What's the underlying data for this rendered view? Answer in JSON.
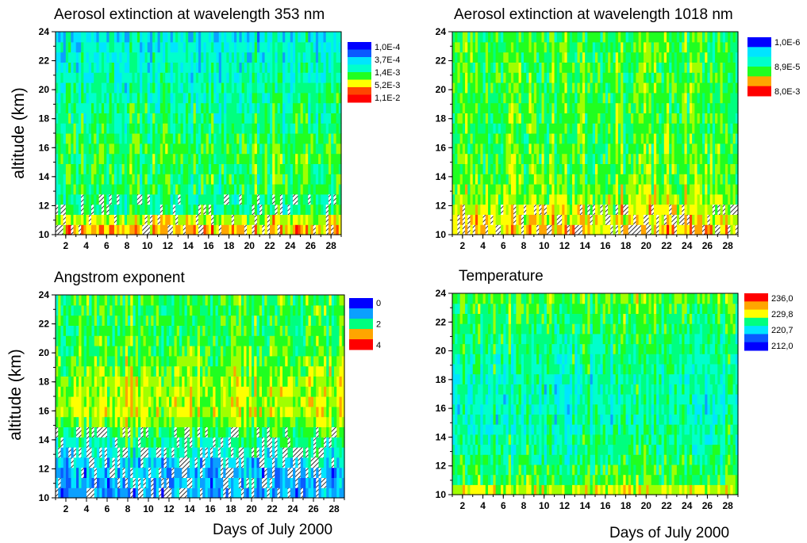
{
  "palette": [
    "#0000ff",
    "#0a5aff",
    "#0aa0ff",
    "#00e5ff",
    "#00ffcc",
    "#00ff7f",
    "#20ff20",
    "#a0ff00",
    "#ffff00",
    "#ffa500",
    "#ff4500",
    "#ff0000"
  ],
  "hatch_color": "#000000",
  "chart_data": [
    {
      "type": "heatmap",
      "title": "Aerosol extinction at wavelength 353 nm",
      "ylabel": "altitude (km)",
      "xlabel": "",
      "x_range": [
        1,
        29
      ],
      "ylim": [
        10,
        24
      ],
      "x_ticks": [
        "2",
        "4",
        "6",
        "8",
        "10",
        "12",
        "14",
        "16",
        "18",
        "20",
        "22",
        "24",
        "26",
        "28"
      ],
      "y_ticks": [
        "10",
        "12",
        "14",
        "16",
        "18",
        "20",
        "22",
        "24"
      ],
      "legend": [
        "1,0E-4",
        "3,7E-4",
        "1,4E-3",
        "5,2E-3",
        "1,1E-2"
      ],
      "legend_position": "right",
      "band_mean": [
        [
          10.0,
          9.5
        ],
        [
          11.0,
          7.5
        ],
        [
          12.0,
          4.5
        ],
        [
          13.0,
          5.5
        ],
        [
          14.0,
          5.5
        ],
        [
          16.0,
          5.8
        ],
        [
          18.0,
          5.0
        ],
        [
          20.0,
          4.5
        ],
        [
          22.0,
          4.0
        ],
        [
          24.0,
          3.5
        ]
      ],
      "hatch_below_km": 12.6,
      "seed": 11
    },
    {
      "type": "heatmap",
      "title": "Aerosol extinction at wavelength 1018 nm",
      "ylabel": "",
      "xlabel": "",
      "x_range": [
        1,
        29
      ],
      "ylim": [
        10,
        24
      ],
      "x_ticks": [
        "2",
        "4",
        "6",
        "8",
        "10",
        "12",
        "14",
        "16",
        "18",
        "20",
        "22",
        "24",
        "26",
        "28"
      ],
      "y_ticks": [
        "10",
        "12",
        "14",
        "16",
        "18",
        "20",
        "22",
        "24"
      ],
      "legend": [
        "1,0E-6",
        "8,9E-5",
        "8,0E-3"
      ],
      "legend_position": "right",
      "band_mean": [
        [
          10.0,
          9.0
        ],
        [
          11.0,
          8.0
        ],
        [
          12.5,
          7.0
        ],
        [
          14.0,
          6.3
        ],
        [
          17.0,
          6.0
        ],
        [
          20.0,
          6.0
        ],
        [
          24.0,
          5.8
        ]
      ],
      "hatch_below_km": 11.6,
      "seed": 23
    },
    {
      "type": "heatmap",
      "title": "Angstrom exponent",
      "ylabel": "altitude (km)",
      "xlabel": "Days of July 2000",
      "x_range": [
        1,
        29
      ],
      "ylim": [
        10,
        24
      ],
      "x_ticks": [
        "2",
        "4",
        "6",
        "8",
        "10",
        "12",
        "14",
        "16",
        "18",
        "20",
        "22",
        "24",
        "26",
        "28"
      ],
      "y_ticks": [
        "10",
        "12",
        "14",
        "16",
        "18",
        "20",
        "22",
        "24"
      ],
      "legend": [
        "0",
        "2",
        "4"
      ],
      "legend_position": "right",
      "band_mean": [
        [
          10.0,
          2.0
        ],
        [
          12.0,
          2.5
        ],
        [
          14.0,
          5.0
        ],
        [
          16.0,
          7.5
        ],
        [
          18.0,
          7.0
        ],
        [
          20.0,
          6.0
        ],
        [
          22.0,
          5.5
        ],
        [
          24.0,
          6.0
        ]
      ],
      "hatch_below_km": 14.6,
      "seed": 37
    },
    {
      "type": "heatmap",
      "title": "Temperature",
      "ylabel": "",
      "xlabel": "Days of July 2000",
      "x_range": [
        1,
        29
      ],
      "ylim": [
        10,
        24
      ],
      "x_ticks": [
        "2",
        "4",
        "6",
        "8",
        "10",
        "12",
        "14",
        "16",
        "18",
        "20",
        "22",
        "24",
        "26",
        "28"
      ],
      "y_ticks": [
        "10",
        "12",
        "14",
        "16",
        "18",
        "20",
        "22",
        "24"
      ],
      "legend": [
        "236,0",
        "229,8",
        "220,7",
        "212,0"
      ],
      "legend_position": "right",
      "band_mean": [
        [
          10.0,
          8.5
        ],
        [
          11.0,
          6.0
        ],
        [
          13.0,
          5.0
        ],
        [
          16.0,
          4.3
        ],
        [
          18.0,
          4.5
        ],
        [
          20.0,
          5.0
        ],
        [
          22.0,
          5.5
        ],
        [
          24.0,
          6.5
        ]
      ],
      "hatch_below_km": 0,
      "seed": 53
    }
  ]
}
